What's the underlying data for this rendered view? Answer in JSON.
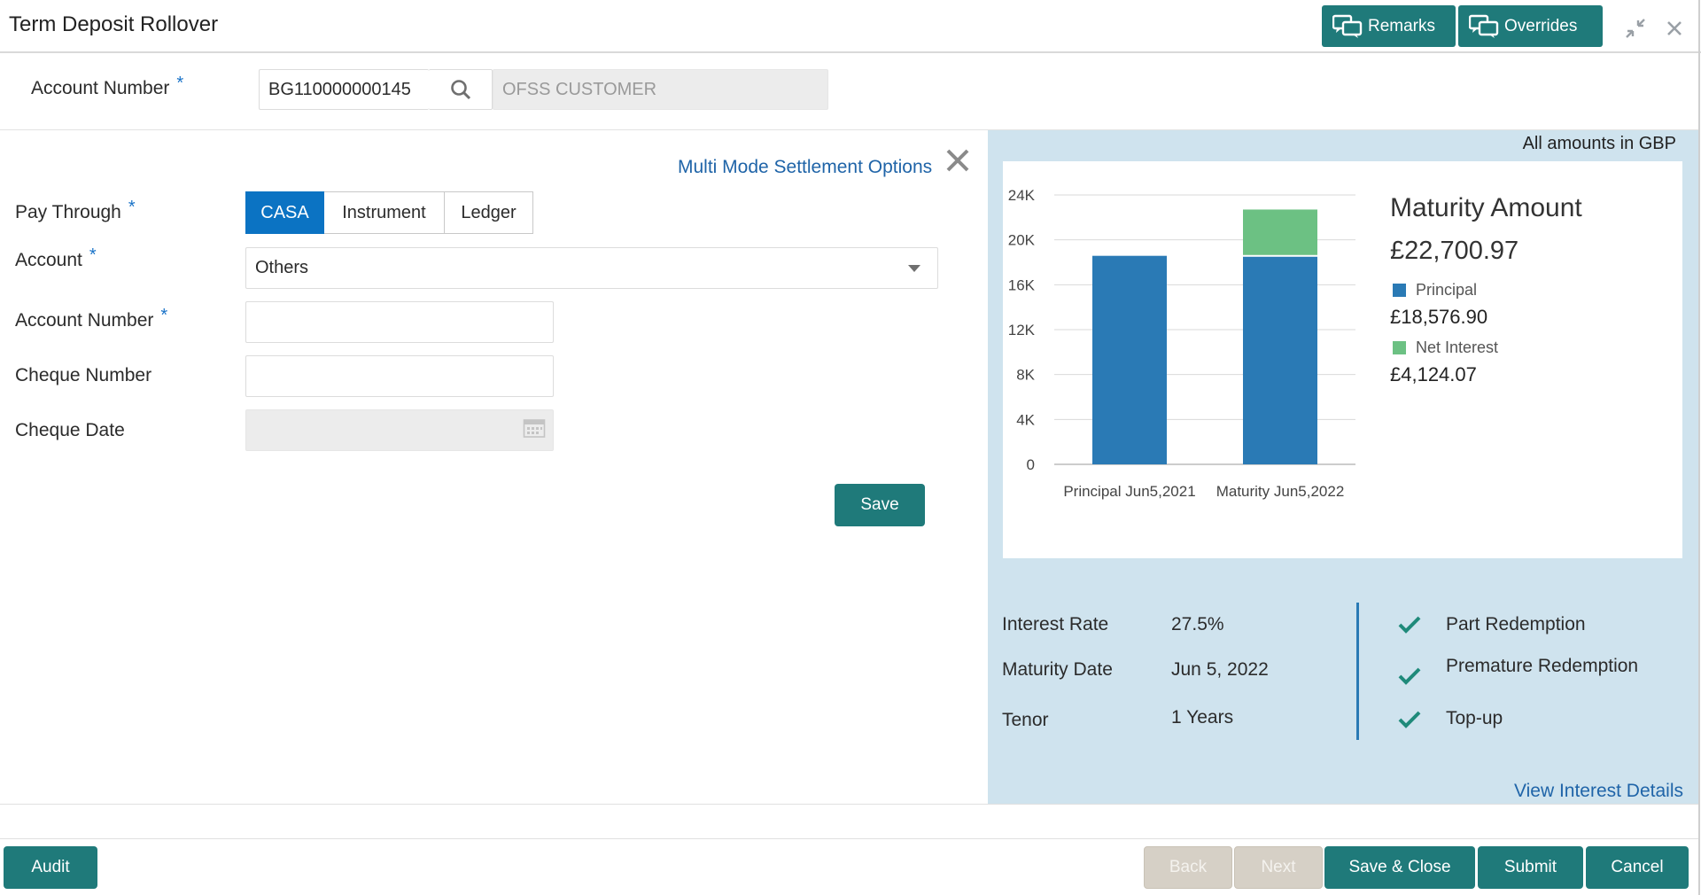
{
  "header": {
    "title": "Term Deposit Rollover",
    "remarks_label": "Remarks",
    "overrides_label": "Overrides",
    "minimize_icon": "compress-icon",
    "close_icon": "close-icon"
  },
  "account": {
    "label": "Account Number",
    "required_mark": "*",
    "value": "BG110000000145",
    "customer_name": "OFSS CUSTOMER"
  },
  "settlement": {
    "link_label": "Multi Mode Settlement Options",
    "pay_through_label": "Pay Through",
    "pay_through_options": [
      "CASA",
      "Instrument",
      "Ledger"
    ],
    "pay_through_selected": "CASA",
    "account_label": "Account",
    "account_value": "Others",
    "account_number_label": "Account Number",
    "account_number_value": "",
    "cheque_number_label": "Cheque Number",
    "cheque_number_value": "",
    "cheque_date_label": "Cheque Date",
    "cheque_date_value": "",
    "save_label": "Save",
    "required_mark": "*"
  },
  "summary": {
    "currency_note": "All amounts in GBP",
    "maturity_title": "Maturity Amount",
    "maturity_amount": "£22,700.97",
    "legend": [
      {
        "name": "Principal",
        "value": "£18,576.90",
        "color": "#2a7ab5"
      },
      {
        "name": "Net Interest",
        "value": "£4,124.07",
        "color": "#6cc183"
      }
    ],
    "details": [
      {
        "label": "Interest Rate",
        "value": "27.5%"
      },
      {
        "label": "Maturity Date",
        "value": "Jun 5, 2022"
      },
      {
        "label": "Tenor",
        "value": "1 Years"
      }
    ],
    "features": [
      "Part Redemption",
      "Premature Redemption",
      "Top-up"
    ],
    "view_details_label": "View Interest Details"
  },
  "chart_data": {
    "type": "bar",
    "stacked": true,
    "categories": [
      "Principal Jun5,2021",
      "Maturity Jun5,2022"
    ],
    "series": [
      {
        "name": "Principal",
        "values": [
          18576.9,
          18576.9
        ],
        "color": "#2a7ab5"
      },
      {
        "name": "Net Interest",
        "values": [
          0,
          4124.07
        ],
        "color": "#6cc183"
      }
    ],
    "y_ticks": [
      "0",
      "4K",
      "8K",
      "12K",
      "16K",
      "20K",
      "24K"
    ],
    "ylim": [
      0,
      24000
    ],
    "grid": true
  },
  "footer": {
    "audit_label": "Audit",
    "back_label": "Back",
    "next_label": "Next",
    "save_close_label": "Save & Close",
    "submit_label": "Submit",
    "cancel_label": "Cancel"
  }
}
